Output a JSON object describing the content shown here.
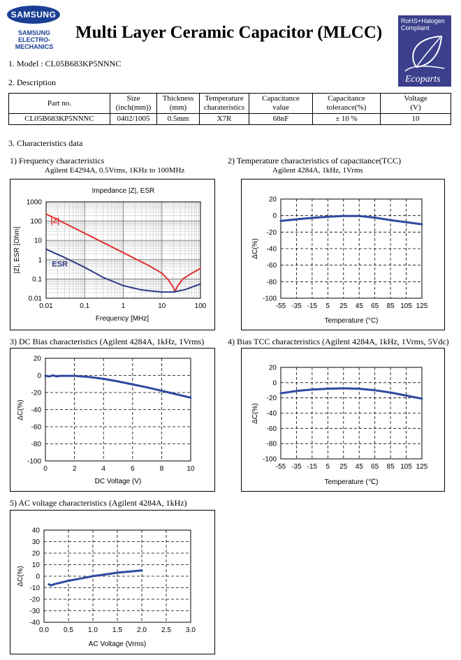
{
  "header": {
    "logo_brand": "SAMSUNG",
    "logo_sub_1": "SAMSUNG",
    "logo_sub_2": "ELECTRO-MECHANICS",
    "title": "Multi Layer Ceramic Capacitor (MLCC)",
    "badge_line1": "RoHS+Halogen",
    "badge_line2": "Compliant",
    "badge_brand": "Ecoparts"
  },
  "model": {
    "label": "1. Model : CL05B683KP5NNNC"
  },
  "description": {
    "label": "2. Description",
    "headers": [
      [
        "Part no."
      ],
      [
        "Size",
        "(inch(mm))"
      ],
      [
        "Thickness",
        "(mm)"
      ],
      [
        "Temperature",
        "charateristics"
      ],
      [
        "Capacitance",
        "value"
      ],
      [
        "Capacitance",
        "tolerance(%)"
      ],
      [
        "Voltage",
        "(V)"
      ]
    ],
    "values": [
      "CL05B683KP5NNNC",
      "0402/1005",
      "0.5mm",
      "X7R",
      "68nF",
      "± 10 %",
      "10"
    ]
  },
  "characteristics": {
    "label": "3. Characteristics data"
  },
  "chart_data": [
    {
      "id": "freq",
      "type": "line",
      "section_title": "1) Frequency characteristics",
      "subtitle": "Agilent E4294A, 0.5Vrms, 1KHz to 100MHz",
      "title": "Impedance |Z|,  ESR",
      "xlabel": "Frequency [MHz]",
      "ylabel": "|Z|, ESR [Ohm]",
      "xscale": "log",
      "yscale": "log",
      "xlim": [
        0.01,
        100
      ],
      "ylim": [
        0.01,
        1000
      ],
      "xticks": [
        0.01,
        0.1,
        1,
        10,
        100
      ],
      "xtick_labels": [
        "0.01",
        "0.1",
        "1",
        "10",
        "100"
      ],
      "yticks": [
        0.01,
        0.1,
        1,
        10,
        100,
        1000
      ],
      "ytick_labels": [
        "0.01",
        "0.1",
        "1",
        "10",
        "100",
        "1000"
      ],
      "grid": true,
      "series": [
        {
          "name": "|Z|",
          "color": "#e03030",
          "x": [
            0.01,
            0.1,
            1,
            5,
            10,
            15,
            20,
            22,
            25,
            35,
            60,
            100
          ],
          "y": [
            234,
            23.4,
            2.3,
            0.45,
            0.2,
            0.085,
            0.035,
            0.022,
            0.04,
            0.1,
            0.2,
            0.35
          ]
        },
        {
          "name": "ESR",
          "color": "#2e3a87",
          "x": [
            0.01,
            0.03,
            0.1,
            0.3,
            1,
            3,
            10,
            20,
            40,
            100
          ],
          "y": [
            3.5,
            1.3,
            0.4,
            0.12,
            0.045,
            0.027,
            0.021,
            0.021,
            0.028,
            0.055
          ]
        }
      ]
    },
    {
      "id": "tcc",
      "type": "line",
      "section_title": "2) Temperature characteristics of capacitance(TCC)",
      "subtitle": "Agilent 4284A, 1kHz, 1Vrms",
      "xlabel": "Temperature (°C)",
      "ylabel": "ΔC(%)",
      "xlim": [
        -55,
        125
      ],
      "ylim": [
        -100,
        20
      ],
      "xticks": [
        -55,
        -35,
        -15,
        5,
        25,
        45,
        65,
        85,
        105,
        125
      ],
      "yticks": [
        -100,
        -80,
        -60,
        -40,
        -20,
        0,
        20
      ],
      "grid": true,
      "series": [
        {
          "color": "#2e4aa0",
          "x": [
            -55,
            -35,
            -15,
            5,
            25,
            45,
            65,
            85,
            105,
            125
          ],
          "y": [
            -6.5,
            -4.5,
            -2.8,
            -1.5,
            -0.5,
            -0.5,
            -2.5,
            -5.5,
            -8,
            -10.5
          ]
        }
      ]
    },
    {
      "id": "dcbias",
      "type": "line",
      "section_title": "3) DC Bias characteristics (Agilent 4284A, 1kHz, 1Vrms)",
      "xlabel": "DC Voltage (V)",
      "ylabel": "ΔC(%)",
      "xlim": [
        0,
        10
      ],
      "ylim": [
        -100,
        20
      ],
      "xticks": [
        0,
        2,
        4,
        6,
        8,
        10
      ],
      "yticks": [
        -100,
        -80,
        -60,
        -40,
        -20,
        0,
        20
      ],
      "grid": true,
      "series": [
        {
          "color": "#2e4aa0",
          "x": [
            0,
            0.3,
            0.5,
            0.8,
            1,
            2,
            3,
            4,
            5,
            6,
            7,
            8,
            9,
            10
          ],
          "y": [
            -0.5,
            -1.2,
            0,
            -1.2,
            -0.5,
            -0.5,
            -1.8,
            -4,
            -7,
            -10.5,
            -14,
            -18,
            -22,
            -26
          ]
        }
      ]
    },
    {
      "id": "biastcc",
      "type": "line",
      "section_title": "4) Bias TCC characteristics (Agilent 4284A, 1kHz, 1Vrms, 5Vdc)",
      "xlabel": "Temperature (℃)",
      "ylabel": "ΔC(%)",
      "xlim": [
        -55,
        125
      ],
      "ylim": [
        -100,
        20
      ],
      "xticks": [
        -55,
        -35,
        -15,
        5,
        25,
        45,
        65,
        85,
        105,
        125
      ],
      "yticks": [
        -100,
        -80,
        -60,
        -40,
        -20,
        0,
        20
      ],
      "grid": true,
      "series": [
        {
          "color": "#2e4aa0",
          "x": [
            -55,
            -35,
            -15,
            5,
            25,
            45,
            65,
            85,
            105,
            125
          ],
          "y": [
            -14,
            -11,
            -9,
            -8,
            -7.5,
            -8,
            -10,
            -13,
            -17,
            -21
          ]
        }
      ]
    },
    {
      "id": "acvolt",
      "type": "line",
      "section_title": "5) AC voltage characteristics (Agilent 4284A, 1kHz)",
      "xlabel": "AC Voltage (Vrms)",
      "ylabel": "ΔC(%)",
      "xlim": [
        0,
        3.0
      ],
      "ylim": [
        -40,
        40
      ],
      "xticks": [
        0.0,
        0.5,
        1.0,
        1.5,
        2.0,
        2.5,
        3.0
      ],
      "xtick_labels": [
        "0.0",
        "0.5",
        "1.0",
        "1.5",
        "2.0",
        "2.5",
        "3.0"
      ],
      "yticks": [
        -40,
        -30,
        -20,
        -10,
        0,
        10,
        20,
        30,
        40
      ],
      "grid": true,
      "series": [
        {
          "color": "#2e4aa0",
          "x": [
            0.1,
            0.15,
            0.2,
            0.3,
            0.5,
            0.75,
            1.0,
            1.25,
            1.5,
            1.75,
            2.0
          ],
          "y": [
            -7,
            -8,
            -7,
            -6,
            -4,
            -2,
            0,
            1.5,
            3,
            4,
            5
          ]
        }
      ]
    }
  ]
}
